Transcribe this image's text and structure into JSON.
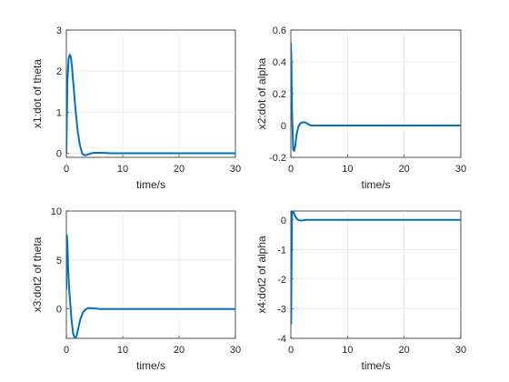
{
  "chart_data": [
    {
      "type": "line",
      "xlabel": "time/s",
      "ylabel": "x1:dot of theta",
      "xlim": [
        0,
        30
      ],
      "ylim": [
        -0.1,
        3
      ],
      "xticks": [
        "0",
        "10",
        "20",
        "30"
      ],
      "yticks": [
        "0",
        "1",
        "2",
        "3"
      ],
      "ytick_values": [
        0,
        1,
        2,
        3
      ],
      "grid": true,
      "color": "#0072BD",
      "series": [
        {
          "x": [
            0,
            0.2,
            0.4,
            0.6,
            0.8,
            1.0,
            1.3,
            1.6,
            2.0,
            2.4,
            2.8,
            3.2,
            3.6,
            4.0,
            4.5,
            5,
            6,
            8,
            10,
            15,
            20,
            25,
            30
          ],
          "y": [
            0,
            1.8,
            2.3,
            2.4,
            2.35,
            2.1,
            1.6,
            1.1,
            0.55,
            0.2,
            0.0,
            -0.05,
            -0.04,
            -0.02,
            0.0,
            0.01,
            0.01,
            0.0,
            0.0,
            0.0,
            0.0,
            0.0,
            0.0
          ]
        }
      ]
    },
    {
      "type": "line",
      "xlabel": "time/s",
      "ylabel": "x2:dot of alpha",
      "xlim": [
        0,
        30
      ],
      "ylim": [
        -0.2,
        0.6
      ],
      "xticks": [
        "0",
        "10",
        "20",
        "30"
      ],
      "yticks": [
        "-0.2",
        "0",
        "0.2",
        "0.4",
        "0.6"
      ],
      "ytick_values": [
        -0.2,
        0,
        0.2,
        0.4,
        0.6
      ],
      "grid": true,
      "color": "#0072BD",
      "series": [
        {
          "x": [
            0,
            0.1,
            0.2,
            0.4,
            0.6,
            0.8,
            1.0,
            1.3,
            1.6,
            2.0,
            2.5,
            3.0,
            3.5,
            4.0,
            5,
            6,
            8,
            10,
            15,
            20,
            25,
            30
          ],
          "y": [
            0.52,
            0.4,
            0.1,
            -0.15,
            -0.16,
            -0.12,
            -0.06,
            -0.01,
            0.01,
            0.02,
            0.02,
            0.01,
            0.0,
            0.0,
            0.0,
            0.0,
            0.0,
            0.0,
            0.0,
            0.0,
            0.0,
            0.0
          ]
        }
      ]
    },
    {
      "type": "line",
      "xlabel": "time/s",
      "ylabel": "x3:dot2 of theta",
      "xlim": [
        0,
        30
      ],
      "ylim": [
        -3,
        10
      ],
      "xticks": [
        "0",
        "10",
        "20",
        "30"
      ],
      "yticks": [
        "0",
        "5",
        "10"
      ],
      "ytick_values": [
        0,
        5,
        10
      ],
      "grid": true,
      "color": "#0072BD",
      "series": [
        {
          "x": [
            0,
            0.1,
            0.2,
            0.3,
            0.5,
            0.7,
            0.9,
            1.2,
            1.5,
            1.8,
            2.1,
            2.5,
            3.0,
            3.5,
            4.0,
            5,
            6,
            8,
            10,
            15,
            20,
            25,
            30
          ],
          "y": [
            2,
            7.5,
            6.5,
            4.5,
            2,
            0.5,
            -1.0,
            -2.5,
            -3.0,
            -2.8,
            -2.0,
            -1.0,
            -0.3,
            0.0,
            0.1,
            0.05,
            0.0,
            0.0,
            0.0,
            0.0,
            0.0,
            0.0,
            0.0
          ]
        }
      ]
    },
    {
      "type": "line",
      "xlabel": "time/s",
      "ylabel": "x4:dot2 of alpha",
      "xlim": [
        0,
        30
      ],
      "ylim": [
        -4,
        0.3
      ],
      "xticks": [
        "0",
        "10",
        "20",
        "30"
      ],
      "yticks": [
        "-4",
        "-3",
        "-2",
        "-1",
        "0"
      ],
      "ytick_values": [
        -4,
        -3,
        -2,
        -1,
        0
      ],
      "grid": true,
      "color": "#0072BD",
      "series": [
        {
          "x": [
            0,
            0.05,
            0.1,
            0.2,
            0.3,
            0.5,
            0.7,
            1.0,
            1.3,
            1.6,
            2.0,
            2.5,
            3,
            4,
            5,
            6,
            8,
            10,
            15,
            20,
            25,
            30
          ],
          "y": [
            -0.7,
            -3.5,
            -2.0,
            0.25,
            0.3,
            0.25,
            0.15,
            0.05,
            0.0,
            -0.02,
            -0.02,
            0.0,
            0.0,
            0.0,
            0.0,
            0.0,
            0.0,
            0.0,
            0.0,
            0.0,
            0.0,
            0.0
          ]
        }
      ]
    }
  ]
}
